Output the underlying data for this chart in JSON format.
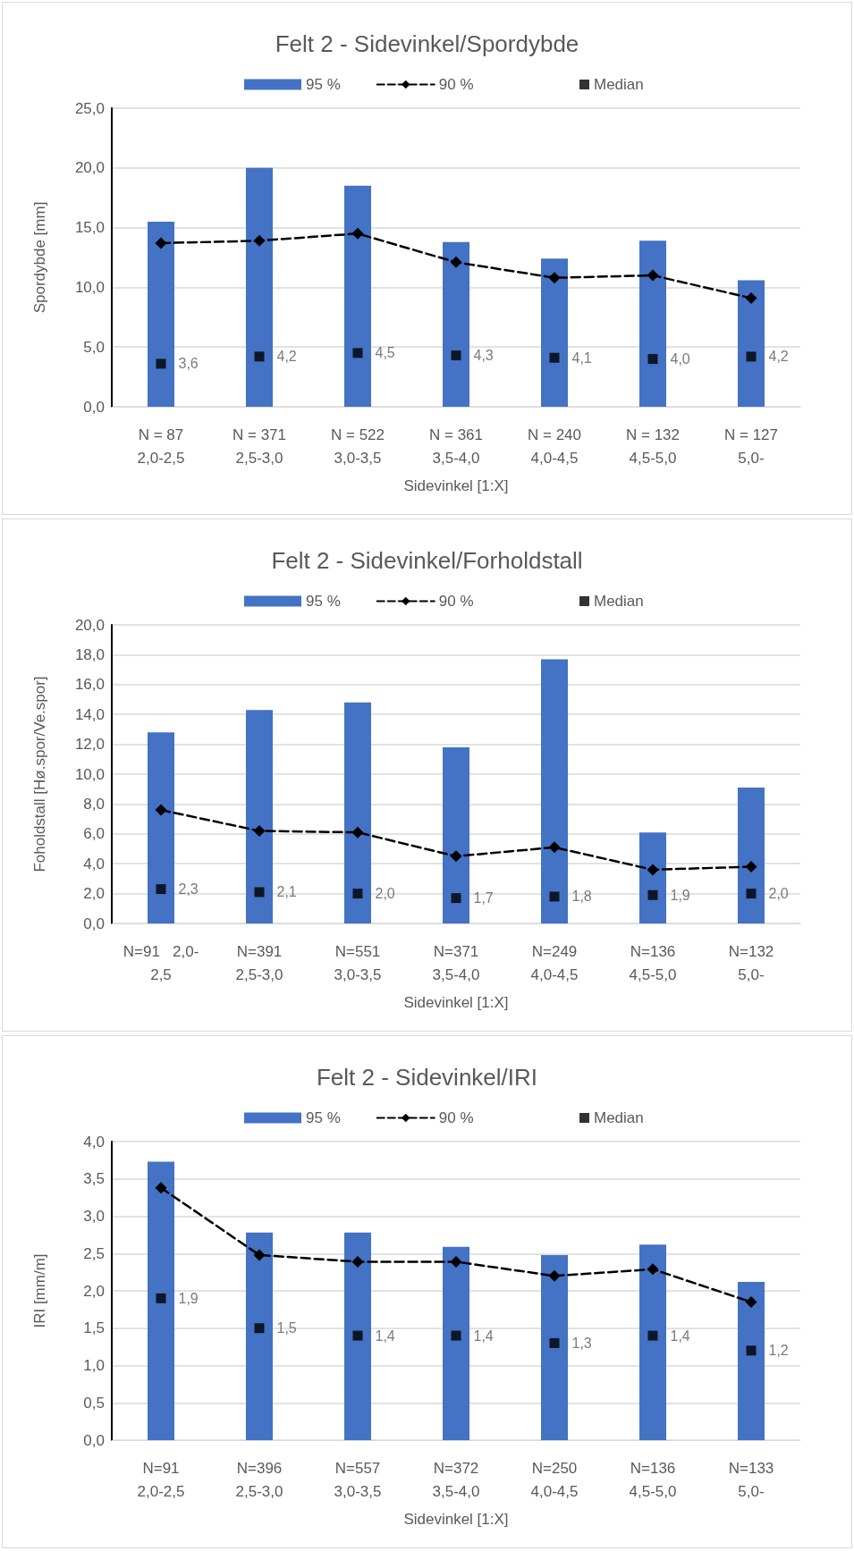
{
  "chart_data": [
    {
      "type": "bar",
      "title": "Felt 2 - Sidevinkel/Spordybde",
      "xlabel": "Sidevinkel [1:X]",
      "ylabel": "Spordybde [mm]",
      "categories": [
        "N = 87\n2,0-2,5",
        "N = 371\n2,5-3,0",
        "N = 522\n3,0-3,5",
        "N = 361\n3,5-4,0",
        "N = 240\n4,0-4,5",
        "N = 132\n4,5-5,0",
        "N = 127\n5,0-"
      ],
      "series": [
        {
          "name": "95 %",
          "color": "#4472c4",
          "values": [
            15.5,
            20.0,
            18.5,
            13.8,
            12.4,
            13.9,
            10.6
          ]
        },
        {
          "name": "90 %",
          "type": "line",
          "color": "#000000",
          "marker": "diamond",
          "line_style": "dashed",
          "values": [
            13.7,
            13.9,
            14.5,
            12.1,
            10.8,
            11.0,
            9.1
          ]
        },
        {
          "name": "Median",
          "type": "scatter",
          "color": "#000000",
          "marker": "square",
          "values": [
            3.6,
            4.2,
            4.5,
            4.3,
            4.1,
            4.0,
            4.2
          ],
          "value_labels": [
            "3,6",
            "4,2",
            "4,5",
            "4,3",
            "4,1",
            "4,0",
            "4,2"
          ]
        }
      ],
      "ylim": [
        0,
        25
      ],
      "yticks": [
        {
          "value": 0,
          "label": "0,0"
        },
        {
          "value": 5,
          "label": "5,0"
        },
        {
          "value": 10,
          "label": "10,0"
        },
        {
          "value": 15,
          "label": "15,0"
        },
        {
          "value": 20,
          "label": "20,0"
        },
        {
          "value": 25,
          "label": "25,0"
        }
      ],
      "grid": "y",
      "legend": "top"
    },
    {
      "type": "bar",
      "title": "Felt 2 - Sidevinkel/Forholdstall",
      "xlabel": "Sidevinkel [1:X]",
      "ylabel": "Foholdstall [Hø.spor/Ve.spor]",
      "categories": [
        "N=91   2,0-\n2,5",
        "N=391\n2,5-3,0",
        "N=551\n3,0-3,5",
        "N=371\n3,5-4,0",
        "N=249\n4,0-4,5",
        "N=136\n4,5-5,0",
        "N=132\n5,0-"
      ],
      "series": [
        {
          "name": "95 %",
          "color": "#4472c4",
          "values": [
            12.8,
            14.3,
            14.8,
            11.8,
            17.7,
            6.1,
            9.1
          ]
        },
        {
          "name": "90 %",
          "type": "line",
          "color": "#000000",
          "marker": "diamond",
          "line_style": "dashed",
          "values": [
            7.6,
            6.2,
            6.1,
            4.5,
            5.1,
            3.6,
            3.8
          ]
        },
        {
          "name": "Median",
          "type": "scatter",
          "color": "#000000",
          "marker": "square",
          "values": [
            2.3,
            2.1,
            2.0,
            1.7,
            1.8,
            1.9,
            2.0
          ],
          "value_labels": [
            "2,3",
            "2,1",
            "2,0",
            "1,7",
            "1,8",
            "1,9",
            "2,0"
          ]
        }
      ],
      "ylim": [
        0,
        20
      ],
      "yticks": [
        {
          "value": 0,
          "label": "0,0"
        },
        {
          "value": 2,
          "label": "2,0"
        },
        {
          "value": 4,
          "label": "4,0"
        },
        {
          "value": 6,
          "label": "6,0"
        },
        {
          "value": 8,
          "label": "8,0"
        },
        {
          "value": 10,
          "label": "10,0"
        },
        {
          "value": 12,
          "label": "12,0"
        },
        {
          "value": 14,
          "label": "14,0"
        },
        {
          "value": 16,
          "label": "16,0"
        },
        {
          "value": 18,
          "label": "18,0"
        },
        {
          "value": 20,
          "label": "20,0"
        }
      ],
      "grid": "y",
      "legend": "top"
    },
    {
      "type": "bar",
      "title": "Felt 2 - Sidevinkel/IRI",
      "xlabel": "Sidevinkel [1:X]",
      "ylabel": "IRI [mm/m]",
      "categories": [
        "N=91\n2,0-2,5",
        "N=396\n2,5-3,0",
        "N=557\n3,0-3,5",
        "N=372\n3,5-4,0",
        "N=250\n4,0-4,5",
        "N=136\n4,5-5,0",
        "N=133\n5,0-"
      ],
      "series": [
        {
          "name": "95 %",
          "color": "#4472c4",
          "values": [
            3.73,
            2.78,
            2.78,
            2.59,
            2.48,
            2.62,
            2.12
          ]
        },
        {
          "name": "90 %",
          "type": "line",
          "color": "#000000",
          "marker": "diamond",
          "line_style": "dashed",
          "values": [
            3.38,
            2.48,
            2.39,
            2.39,
            2.2,
            2.29,
            1.85
          ]
        },
        {
          "name": "Median",
          "type": "scatter",
          "color": "#000000",
          "marker": "square",
          "values": [
            1.9,
            1.5,
            1.4,
            1.4,
            1.3,
            1.4,
            1.2
          ],
          "value_labels": [
            "1,9",
            "1,5",
            "1,4",
            "1,4",
            "1,3",
            "1,4",
            "1,2"
          ]
        }
      ],
      "ylim": [
        0,
        4
      ],
      "yticks": [
        {
          "value": 0,
          "label": "0,0"
        },
        {
          "value": 0.5,
          "label": "0,5"
        },
        {
          "value": 1,
          "label": "1,0"
        },
        {
          "value": 1.5,
          "label": "1,5"
        },
        {
          "value": 2,
          "label": "2,0"
        },
        {
          "value": 2.5,
          "label": "2,5"
        },
        {
          "value": 3,
          "label": "3,0"
        },
        {
          "value": 3.5,
          "label": "3,5"
        },
        {
          "value": 4,
          "label": "4,0"
        }
      ],
      "grid": "y",
      "legend": "top"
    }
  ]
}
